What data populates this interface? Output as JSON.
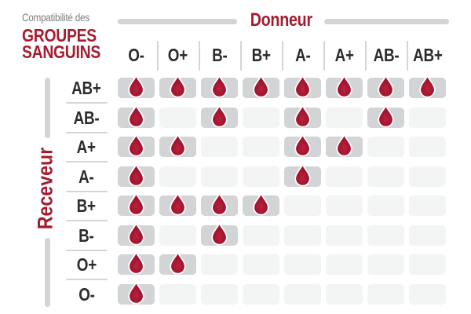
{
  "title": {
    "eyebrow": "Compatibilité des",
    "line1": "GROUPES",
    "line2": "SANGUINS"
  },
  "chart_data": {
    "type": "heatmap",
    "title": "Compatibilité des GROUPES SANGUINS",
    "x_axis_label": "Donneur",
    "y_axis_label": "Receveur",
    "columns": [
      "O-",
      "O+",
      "B-",
      "B+",
      "A-",
      "A+",
      "AB-",
      "AB+"
    ],
    "rows": [
      "AB+",
      "AB-",
      "A+",
      "A-",
      "B+",
      "B-",
      "O+",
      "O-"
    ],
    "matrix": [
      [
        1,
        1,
        1,
        1,
        1,
        1,
        1,
        1
      ],
      [
        1,
        0,
        1,
        0,
        1,
        0,
        1,
        0
      ],
      [
        1,
        1,
        0,
        0,
        1,
        1,
        0,
        0
      ],
      [
        1,
        0,
        0,
        0,
        1,
        0,
        0,
        0
      ],
      [
        1,
        1,
        1,
        1,
        0,
        0,
        0,
        0
      ],
      [
        1,
        0,
        1,
        0,
        0,
        0,
        0,
        0
      ],
      [
        1,
        1,
        0,
        0,
        0,
        0,
        0,
        0
      ],
      [
        1,
        0,
        0,
        0,
        0,
        0,
        0,
        0
      ]
    ],
    "marker_icon": "blood-drop-icon",
    "grid": "rounded-cells",
    "legend_position": "none"
  },
  "colors": {
    "accent_red": "#a51c30",
    "drop_red_dark": "#9c1129",
    "drop_red_light": "#b8223c",
    "cell_filled": "#d2d4d5",
    "cell_empty": "#f3f4f4",
    "bar_gray": "#d2d4d5",
    "separator_gray": "#d4d5d6",
    "label_dark": "#2b2c2e",
    "muted_gray": "#7c7e80"
  }
}
